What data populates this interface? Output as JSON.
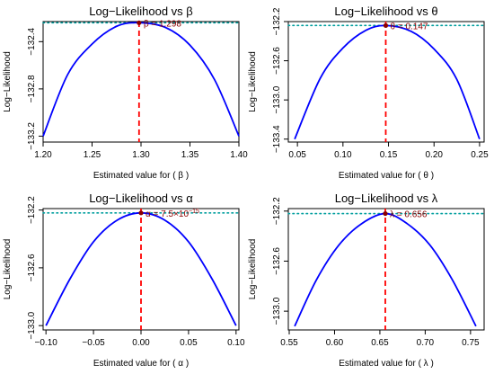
{
  "chart_data": [
    {
      "type": "line",
      "title": "Log−Likelihood vs  β",
      "xlabel": "Estimated value for ( β )",
      "ylabel": "Log−Likelihood",
      "xlim": [
        1.2,
        1.4
      ],
      "ylim": [
        -133.25,
        -132.23
      ],
      "xticks": [
        1.2,
        1.25,
        1.3,
        1.35,
        1.4
      ],
      "xtick_labels": [
        "1.20",
        "1.25",
        "1.30",
        "1.35",
        "1.40"
      ],
      "yticks": [
        -132.4,
        -132.8,
        -133.2
      ],
      "ytick_labels": [
        "−132.4",
        "−132.8",
        "−133.2"
      ],
      "curve": {
        "x": [
          1.2,
          1.225,
          1.25,
          1.275,
          1.298,
          1.325,
          1.35,
          1.375,
          1.4
        ],
        "y": [
          -133.2,
          -132.68,
          -132.42,
          -132.27,
          -132.24,
          -132.28,
          -132.43,
          -132.72,
          -133.2
        ]
      },
      "max_loglik": -132.24,
      "estimate": 1.298,
      "annotation": "β = 1.298",
      "grid": false,
      "colors": {
        "curve": "#0000ff",
        "estimate": "#ff0000",
        "maxline": "#009e9e",
        "point": "#8b0000"
      }
    },
    {
      "type": "line",
      "title": "Log−Likelihood vs  θ",
      "xlabel": "Estimated value for ( θ )",
      "ylabel": "Log−Likelihood",
      "xlim": [
        0.04,
        0.255
      ],
      "ylim": [
        -133.43,
        -132.2
      ],
      "xticks": [
        0.05,
        0.1,
        0.15,
        0.2,
        0.25
      ],
      "xtick_labels": [
        "0.05",
        "0.10",
        "0.15",
        "0.20",
        "0.25"
      ],
      "yticks": [
        -132.2,
        -132.6,
        -133.0,
        -133.4
      ],
      "ytick_labels": [
        "−132.2",
        "−132.6",
        "−133.0",
        "−133.4"
      ],
      "curve": {
        "x": [
          0.047,
          0.075,
          0.1,
          0.125,
          0.147,
          0.175,
          0.2,
          0.225,
          0.25
        ],
        "y": [
          -133.4,
          -132.78,
          -132.47,
          -132.29,
          -132.24,
          -132.3,
          -132.48,
          -132.79,
          -133.4
        ]
      },
      "max_loglik": -132.24,
      "estimate": 0.147,
      "annotation": "θ = 0.147",
      "grid": false,
      "colors": {
        "curve": "#0000ff",
        "estimate": "#ff0000",
        "maxline": "#009e9e",
        "point": "#8b0000"
      }
    },
    {
      "type": "line",
      "title": "Log−Likelihood vs  α",
      "xlabel": "Estimated value for ( α )",
      "ylabel": "Log−Likelihood",
      "xlim": [
        -0.103,
        0.103
      ],
      "ylim": [
        -133.03,
        -132.19
      ],
      "xticks": [
        -0.1,
        -0.05,
        0.0,
        0.05,
        0.1
      ],
      "xtick_labels": [
        "−0.10",
        "−0.05",
        "0.00",
        "0.05",
        "0.10"
      ],
      "yticks": [
        -132.2,
        -132.6,
        -133.0
      ],
      "ytick_labels": [
        "−132.2",
        "−132.6",
        "−133.0"
      ],
      "curve": {
        "x": [
          -0.1,
          -0.075,
          -0.05,
          -0.025,
          0.0,
          0.025,
          0.05,
          0.075,
          0.1
        ],
        "y": [
          -133.0,
          -132.68,
          -132.42,
          -132.27,
          -132.22,
          -132.27,
          -132.42,
          -132.68,
          -133.0
        ]
      },
      "max_loglik": -132.22,
      "estimate": 0.0,
      "annotation": "α = 7.5×10",
      "annotation_exp": "−15",
      "grid": false,
      "colors": {
        "curve": "#0000ff",
        "estimate": "#ff0000",
        "maxline": "#009e9e",
        "point": "#8b0000"
      }
    },
    {
      "type": "line",
      "title": "Log−Likelihood vs  λ",
      "xlabel": "Estimated value for ( λ )",
      "ylabel": "Log−Likelihood",
      "xlim": [
        0.549,
        0.765
      ],
      "ylim": [
        -133.15,
        -132.18
      ],
      "xticks": [
        0.55,
        0.6,
        0.65,
        0.7,
        0.75
      ],
      "xtick_labels": [
        "0.55",
        "0.60",
        "0.65",
        "0.70",
        "0.75"
      ],
      "yticks": [
        -132.2,
        -132.6,
        -133.0
      ],
      "ytick_labels": [
        "−132.2",
        "−132.6",
        "−133.0"
      ],
      "curve": {
        "x": [
          0.556,
          0.58,
          0.605,
          0.63,
          0.656,
          0.68,
          0.705,
          0.73,
          0.756
        ],
        "y": [
          -133.12,
          -132.75,
          -132.47,
          -132.3,
          -132.22,
          -132.3,
          -132.47,
          -132.75,
          -133.12
        ]
      },
      "max_loglik": -132.22,
      "estimate": 0.656,
      "annotation": "λ = 0.656",
      "grid": false,
      "colors": {
        "curve": "#0000ff",
        "estimate": "#ff0000",
        "maxline": "#009e9e",
        "point": "#8b0000"
      }
    }
  ]
}
